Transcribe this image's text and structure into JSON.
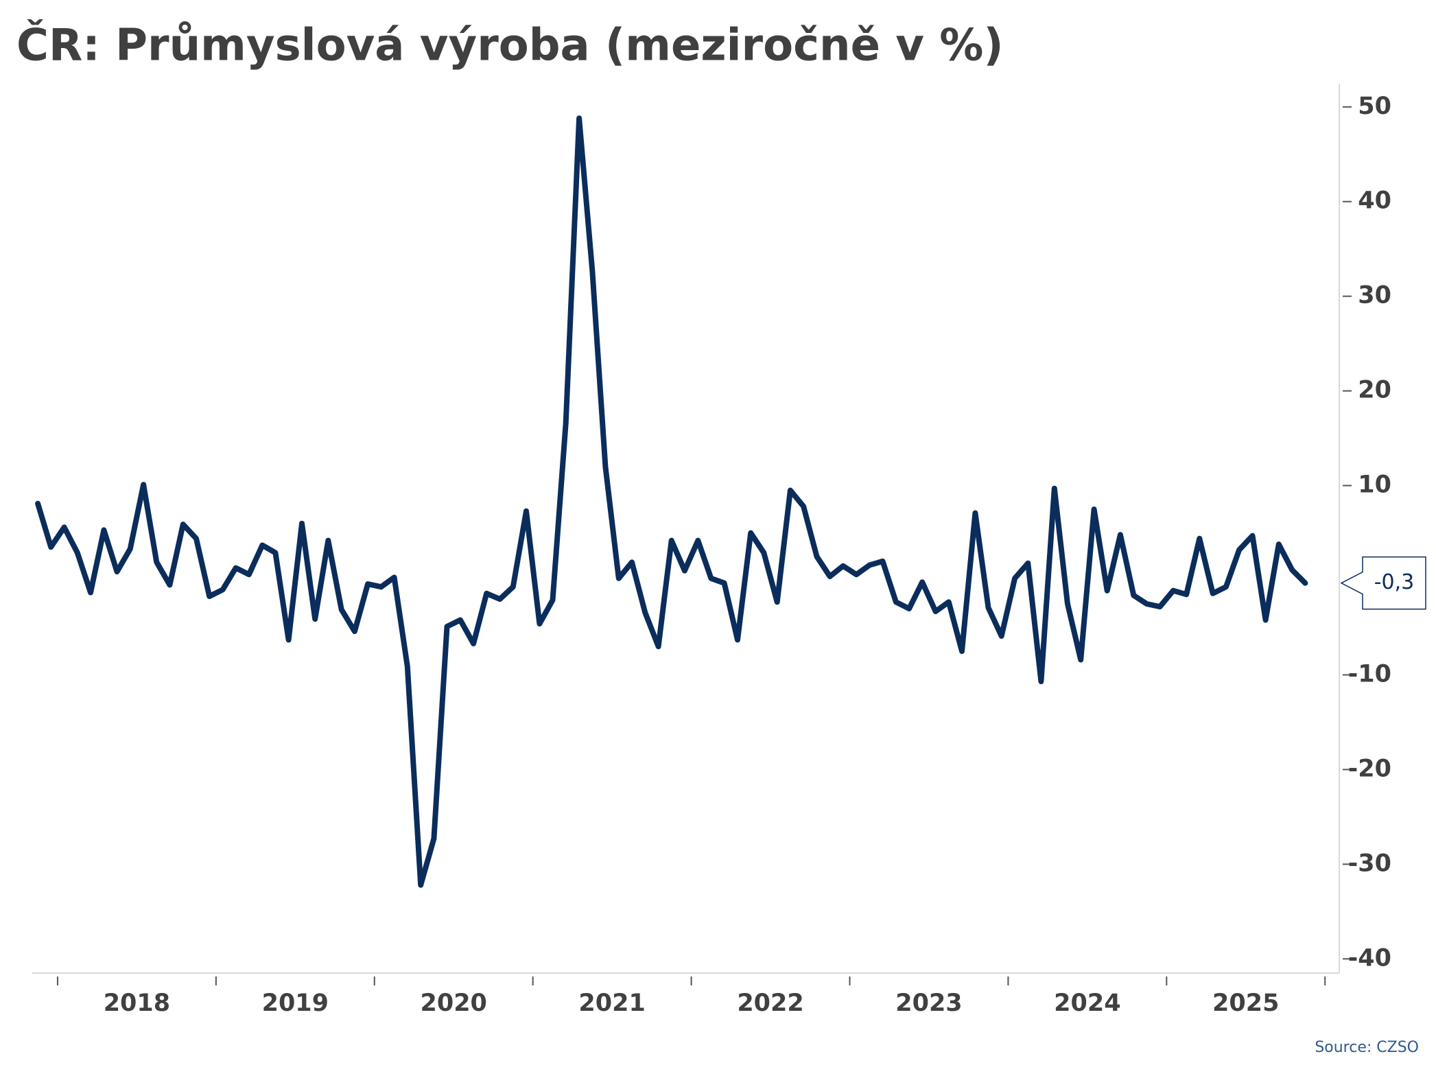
{
  "chart_data": {
    "type": "line",
    "title": "ČR: Průmyslová výroba (meziročně v %)",
    "source": "Source: CZSO",
    "annotation": "-0,3",
    "color": "#0b2d5c",
    "x": [
      2017.875,
      2017.958,
      2018.042,
      2018.125,
      2018.208,
      2018.292,
      2018.375,
      2018.458,
      2018.542,
      2018.625,
      2018.708,
      2018.792,
      2018.875,
      2018.958,
      2019.042,
      2019.125,
      2019.208,
      2019.292,
      2019.375,
      2019.458,
      2019.542,
      2019.625,
      2019.708,
      2019.792,
      2019.875,
      2019.958,
      2020.042,
      2020.125,
      2020.208,
      2020.292,
      2020.375,
      2020.458,
      2020.542,
      2020.625,
      2020.708,
      2020.792,
      2020.875,
      2020.958,
      2021.042,
      2021.125,
      2021.208,
      2021.292,
      2021.375,
      2021.458,
      2021.542,
      2021.625,
      2021.708,
      2021.792,
      2021.875,
      2021.958,
      2022.042,
      2022.125,
      2022.208,
      2022.292,
      2022.375,
      2022.458,
      2022.542,
      2022.625,
      2022.708,
      2022.792,
      2022.875,
      2022.958,
      2023.042,
      2023.125,
      2023.208,
      2023.292,
      2023.375,
      2023.458,
      2023.542,
      2023.625,
      2023.708,
      2023.792,
      2023.875,
      2023.958,
      2024.042,
      2024.125,
      2024.208,
      2024.292,
      2024.375,
      2024.458,
      2024.542,
      2024.625,
      2024.708,
      2024.792,
      2024.875,
      2024.958,
      2025.042,
      2025.125,
      2025.208,
      2025.292,
      2025.375,
      2025.458,
      2025.542,
      2025.625,
      2025.708,
      2025.792,
      2025.875
    ],
    "values": [
      8.1,
      3.5,
      5.6,
      2.9,
      -1.3,
      5.3,
      0.9,
      3.3,
      10.1,
      1.9,
      -0.5,
      5.9,
      4.4,
      -1.7,
      -1.0,
      1.3,
      0.6,
      3.7,
      2.9,
      -6.3,
      6.0,
      -4.1,
      4.2,
      -3.1,
      -5.4,
      -0.4,
      -0.7,
      0.3,
      -9.1,
      -32.2,
      -27.3,
      -4.9,
      -4.2,
      -6.7,
      -1.4,
      -2.0,
      -0.7,
      7.3,
      -4.6,
      -2.1,
      16.6,
      48.8,
      32.7,
      12.0,
      0.2,
      1.9,
      -3.4,
      -7.0,
      4.2,
      1.0,
      4.2,
      0.2,
      -0.3,
      -6.3,
      5.0,
      2.9,
      -2.3,
      9.5,
      7.8,
      2.5,
      0.4,
      1.5,
      0.6,
      1.6,
      2.0,
      -2.3,
      -3.0,
      -0.2,
      -3.3,
      -2.3,
      -7.5,
      7.1,
      -2.9,
      -5.9,
      0.2,
      1.8,
      -10.7,
      9.7,
      -2.5,
      -8.4,
      7.5,
      -1.1,
      4.8,
      -1.6,
      -2.5,
      -2.8,
      -1.1,
      -1.5,
      4.4,
      -1.4,
      -0.7,
      3.2,
      4.7,
      -4.2,
      3.8,
      1.1,
      -0.3
    ],
    "xlim": [
      2017.84,
      2026.09
    ],
    "xticks": [
      2018,
      2019,
      2020,
      2021,
      2022,
      2023,
      2024,
      2025,
      2026
    ],
    "xlabels": [
      {
        "value": 2018.5,
        "label": "2018"
      },
      {
        "value": 2019.5,
        "label": "2019"
      },
      {
        "value": 2020.5,
        "label": "2020"
      },
      {
        "value": 2021.5,
        "label": "2021"
      },
      {
        "value": 2022.5,
        "label": "2022"
      },
      {
        "value": 2023.5,
        "label": "2023"
      },
      {
        "value": 2024.5,
        "label": "2024"
      },
      {
        "value": 2025.5,
        "label": "2025"
      }
    ],
    "ylim": [
      -41.5,
      51
    ],
    "yticks": [
      50,
      40,
      30,
      20,
      10,
      -10,
      -20,
      -30,
      -40
    ]
  }
}
